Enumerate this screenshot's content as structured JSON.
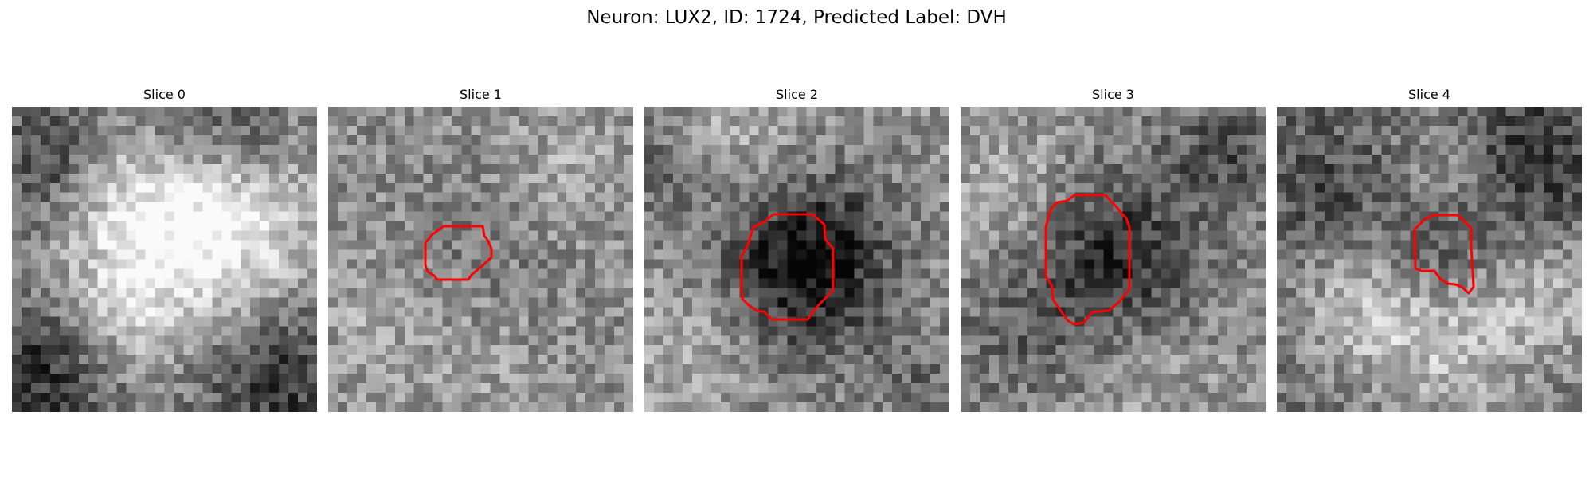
{
  "figure": {
    "title": "Neuron: LUX2, ID: 1724, Predicted Label: DVH"
  },
  "panels": [
    {
      "title": "Slice 0",
      "has_contour": false
    },
    {
      "title": "Slice 1",
      "has_contour": true
    },
    {
      "title": "Slice 2",
      "has_contour": true
    },
    {
      "title": "Slice 3",
      "has_contour": true
    },
    {
      "title": "Slice 4",
      "has_contour": true
    }
  ],
  "colors": {
    "contour": "#ff0000",
    "background": "#ffffff"
  }
}
